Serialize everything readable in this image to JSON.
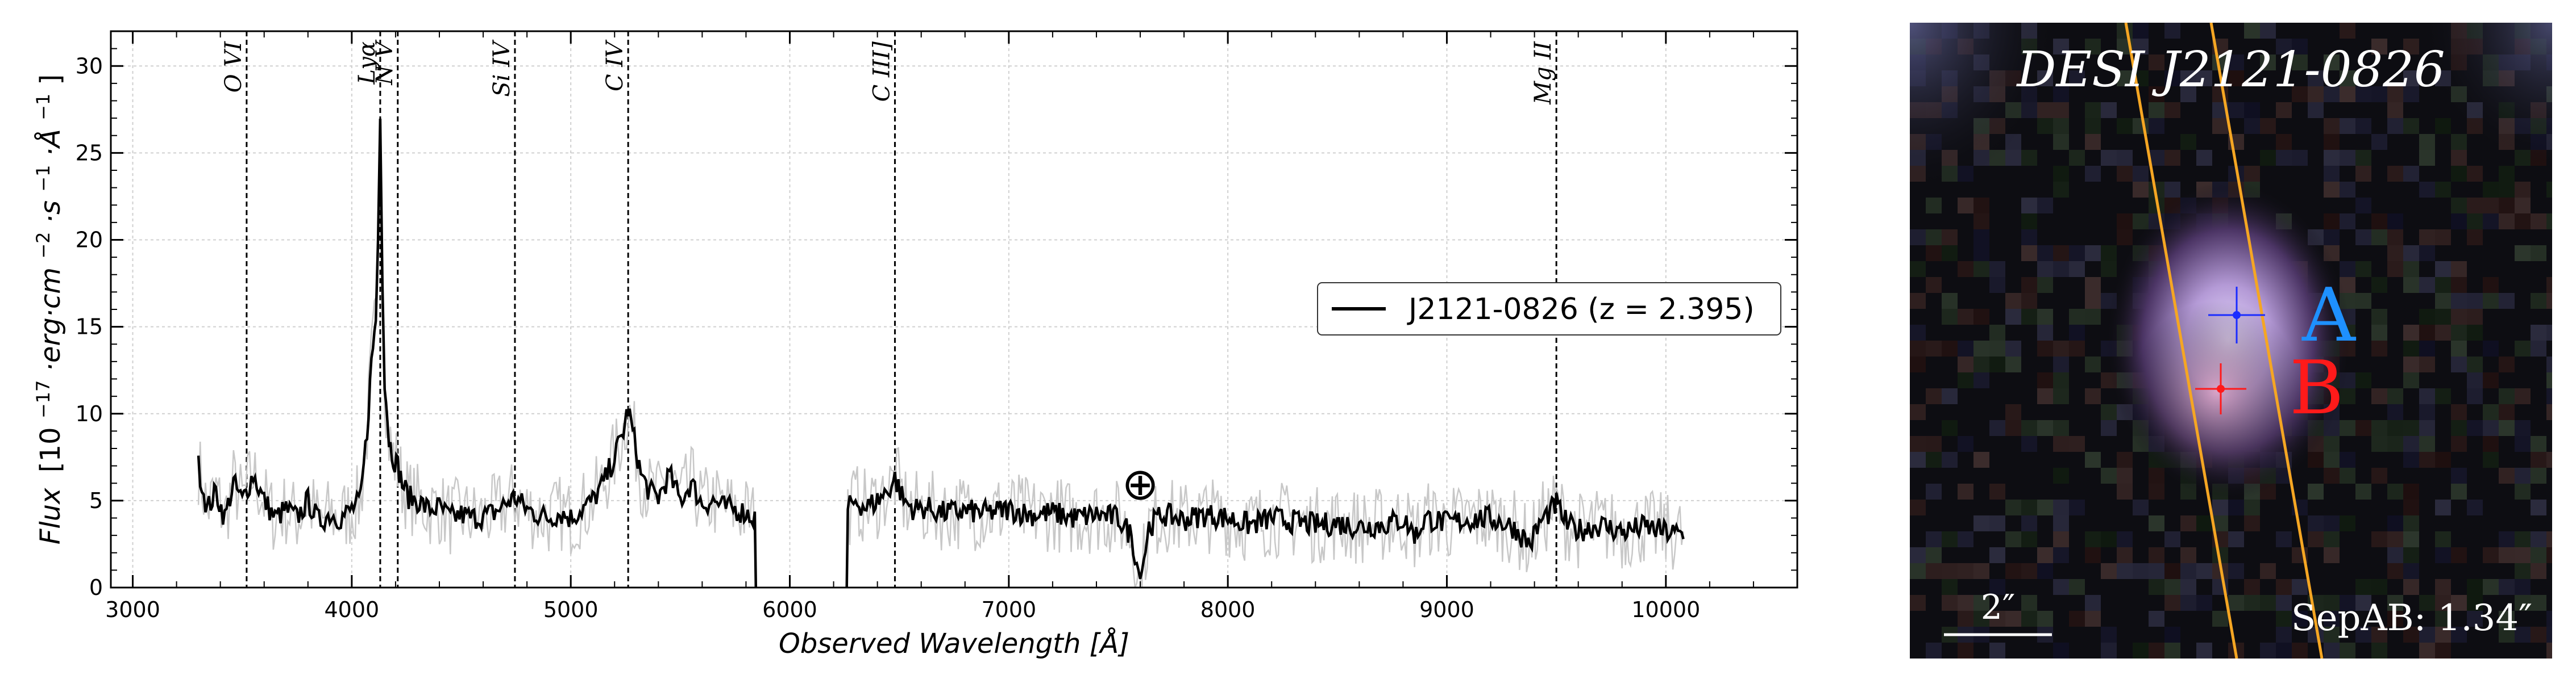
{
  "chart_data": [
    {
      "type": "line",
      "xlabel": "Observed Wavelength [Å]",
      "ylabel_parts": {
        "flux": "Flux",
        "open": "[10",
        "exp1": "−17",
        "mid1": "·erg·cm",
        "exp2": "−2",
        "mid2": "·s",
        "exp3": "−1",
        "mid3": "·Å",
        "exp4": "−1",
        "close": "]"
      },
      "xlim": [
        2900,
        10600
      ],
      "ylim": [
        0,
        32
      ],
      "x_ticks": [
        3000,
        4000,
        5000,
        6000,
        7000,
        8000,
        9000,
        10000
      ],
      "y_ticks": [
        0,
        5,
        10,
        15,
        20,
        25,
        30
      ],
      "grid": true,
      "legend": {
        "label": "J2121-0826 (z = 2.395)",
        "placement": "right"
      },
      "emission_lines": [
        {
          "label": "O VI",
          "x": 3520
        },
        {
          "label": "Lyα",
          "x": 4130
        },
        {
          "label": "N V",
          "x": 4210
        },
        {
          "label": "Si IV",
          "x": 4745
        },
        {
          "label": "C IV",
          "x": 5262
        },
        {
          "label": "C III]",
          "x": 6480
        },
        {
          "label": "Mg II",
          "x": 9500
        }
      ],
      "telluric_symbol": {
        "symbol": "⊕",
        "x": 7600,
        "y": 6
      },
      "gap": [
        5850,
        6250
      ],
      "series": [
        {
          "name": "J2121-0826 (z = 2.395)",
          "color": "#000000",
          "noisy_color": "#c8c8c8",
          "points": [
            [
              3300,
              7.0
            ],
            [
              3340,
              4.5
            ],
            [
              3380,
              5.5
            ],
            [
              3420,
              4.0
            ],
            [
              3460,
              6.0
            ],
            [
              3500,
              5.0
            ],
            [
              3550,
              6.5
            ],
            [
              3600,
              5.0
            ],
            [
              3650,
              4.0
            ],
            [
              3700,
              4.5
            ],
            [
              3750,
              4.0
            ],
            [
              3800,
              5.0
            ],
            [
              3850,
              3.8
            ],
            [
              3900,
              4.2
            ],
            [
              3950,
              4.0
            ],
            [
              4000,
              4.5
            ],
            [
              4040,
              5.0
            ],
            [
              4070,
              9.0
            ],
            [
              4090,
              13.0
            ],
            [
              4110,
              15.5
            ],
            [
              4120,
              20.0
            ],
            [
              4130,
              27.5
            ],
            [
              4140,
              18.0
            ],
            [
              4150,
              12.0
            ],
            [
              4170,
              8.5
            ],
            [
              4190,
              7.5
            ],
            [
              4210,
              7.0
            ],
            [
              4230,
              6.0
            ],
            [
              4260,
              5.2
            ],
            [
              4300,
              5.0
            ],
            [
              4350,
              4.5
            ],
            [
              4400,
              4.6
            ],
            [
              4450,
              4.0
            ],
            [
              4500,
              4.2
            ],
            [
              4550,
              4.0
            ],
            [
              4600,
              4.1
            ],
            [
              4650,
              4.3
            ],
            [
              4700,
              4.8
            ],
            [
              4745,
              5.2
            ],
            [
              4800,
              4.5
            ],
            [
              4850,
              4.2
            ],
            [
              4900,
              4.0
            ],
            [
              4950,
              4.3
            ],
            [
              5000,
              4.0
            ],
            [
              5050,
              4.5
            ],
            [
              5100,
              5.0
            ],
            [
              5150,
              6.0
            ],
            [
              5200,
              7.5
            ],
            [
              5240,
              9.0
            ],
            [
              5262,
              10.3
            ],
            [
              5290,
              8.5
            ],
            [
              5320,
              6.5
            ],
            [
              5360,
              5.5
            ],
            [
              5400,
              5.2
            ],
            [
              5450,
              6.5
            ],
            [
              5500,
              5.0
            ],
            [
              5550,
              6.0
            ],
            [
              5600,
              4.8
            ],
            [
              5650,
              5.0
            ],
            [
              5700,
              4.6
            ],
            [
              5750,
              4.5
            ],
            [
              5800,
              4.3
            ],
            [
              5840,
              4.0
            ],
            [
              5845,
              0.0
            ],
            null,
            [
              6260,
              0.0
            ],
            [
              6265,
              4.5
            ],
            [
              6300,
              5.0
            ],
            [
              6350,
              4.6
            ],
            [
              6400,
              5.0
            ],
            [
              6450,
              5.6
            ],
            [
              6480,
              6.3
            ],
            [
              6520,
              5.0
            ],
            [
              6570,
              4.5
            ],
            [
              6620,
              4.6
            ],
            [
              6700,
              4.3
            ],
            [
              6800,
              4.4
            ],
            [
              6900,
              4.3
            ],
            [
              7000,
              4.5
            ],
            [
              7100,
              4.2
            ],
            [
              7200,
              4.3
            ],
            [
              7300,
              4.0
            ],
            [
              7400,
              4.2
            ],
            [
              7500,
              4.0
            ],
            [
              7560,
              3.0
            ],
            [
              7600,
              0.5
            ],
            [
              7640,
              3.5
            ],
            [
              7700,
              4.2
            ],
            [
              7800,
              3.9
            ],
            [
              7900,
              4.2
            ],
            [
              8000,
              4.0
            ],
            [
              8100,
              3.6
            ],
            [
              8200,
              4.0
            ],
            [
              8300,
              3.8
            ],
            [
              8400,
              3.6
            ],
            [
              8500,
              3.7
            ],
            [
              8600,
              3.5
            ],
            [
              8700,
              3.6
            ],
            [
              8800,
              3.9
            ],
            [
              8860,
              3.0
            ],
            [
              8900,
              4.0
            ],
            [
              9000,
              3.7
            ],
            [
              9100,
              3.9
            ],
            [
              9200,
              4.0
            ],
            [
              9300,
              3.5
            ],
            [
              9380,
              2.5
            ],
            [
              9430,
              3.8
            ],
            [
              9480,
              4.5
            ],
            [
              9500,
              4.8
            ],
            [
              9550,
              3.6
            ],
            [
              9600,
              3.3
            ],
            [
              9700,
              3.6
            ],
            [
              9800,
              3.2
            ],
            [
              9900,
              3.5
            ],
            [
              10000,
              3.2
            ],
            [
              10080,
              3.0
            ]
          ]
        }
      ]
    },
    {
      "type": "image",
      "title": "DESI J2121-0826",
      "sources": [
        {
          "label": "A",
          "color": "#1e90ff"
        },
        {
          "label": "B",
          "color": "#ff1a1a"
        }
      ],
      "scale_bar_label": "2″",
      "separation_label": "SepAB: 1.34″",
      "slit_color": "#f5a623",
      "colors": {
        "background": "#0d0d12",
        "blob_core": "#d9c6f2",
        "blob_halo": "#5a3d7a"
      }
    }
  ]
}
